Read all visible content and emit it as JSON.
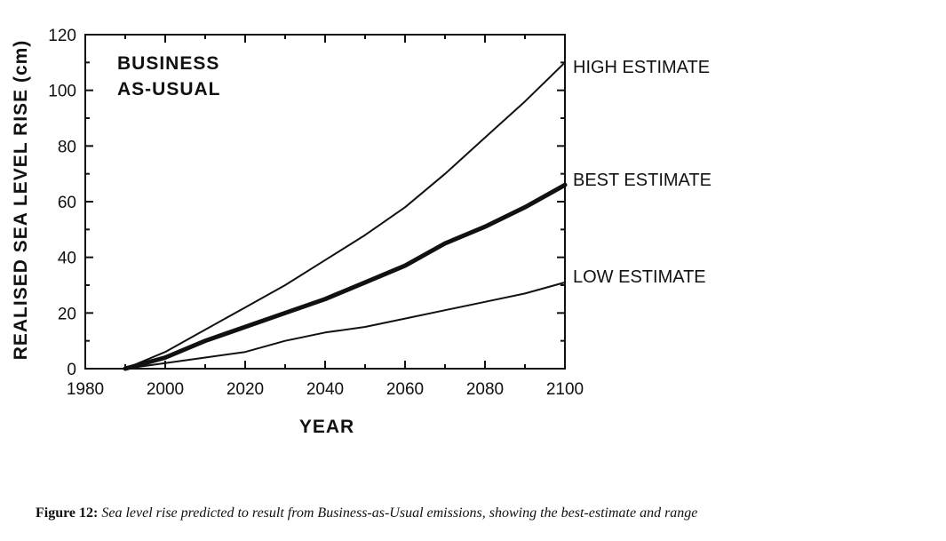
{
  "chart_data": {
    "type": "line",
    "title": "",
    "inset_label": [
      "BUSINESS",
      "AS-USUAL"
    ],
    "xlabel": "YEAR",
    "ylabel": "REALISED SEA LEVEL RISE (cm)",
    "xlim": [
      1980,
      2100
    ],
    "ylim": [
      0,
      120
    ],
    "xticks": [
      1980,
      2000,
      2020,
      2040,
      2060,
      2080,
      2100
    ],
    "yticks": [
      0,
      20,
      40,
      60,
      80,
      100,
      120
    ],
    "grid": false,
    "series": [
      {
        "name": "HIGH ESTIMATE",
        "x": [
          1990,
          2000,
          2010,
          2020,
          2030,
          2040,
          2050,
          2060,
          2070,
          2080,
          2090,
          2100
        ],
        "y": [
          0,
          6,
          14,
          22,
          30,
          39,
          48,
          58,
          70,
          83,
          96,
          110
        ]
      },
      {
        "name": "BEST ESTIMATE",
        "x": [
          1990,
          2000,
          2010,
          2020,
          2030,
          2040,
          2050,
          2060,
          2070,
          2080,
          2090,
          2100
        ],
        "y": [
          0,
          4,
          10,
          15,
          20,
          25,
          31,
          37,
          45,
          51,
          58,
          66
        ]
      },
      {
        "name": "LOW ESTIMATE",
        "x": [
          1990,
          2000,
          2010,
          2020,
          2030,
          2040,
          2050,
          2060,
          2070,
          2080,
          2090,
          2100
        ],
        "y": [
          0,
          2,
          4,
          6,
          10,
          13,
          15,
          18,
          21,
          24,
          27,
          31
        ]
      }
    ],
    "series_labels": [
      "HIGH ESTIMATE",
      "BEST ESTIMATE",
      "LOW ESTIMATE"
    ]
  },
  "caption": {
    "label": "Figure 12:",
    "text": "Sea level rise predicted to result from Business-as-Usual emissions, showing the best-estimate and range"
  }
}
